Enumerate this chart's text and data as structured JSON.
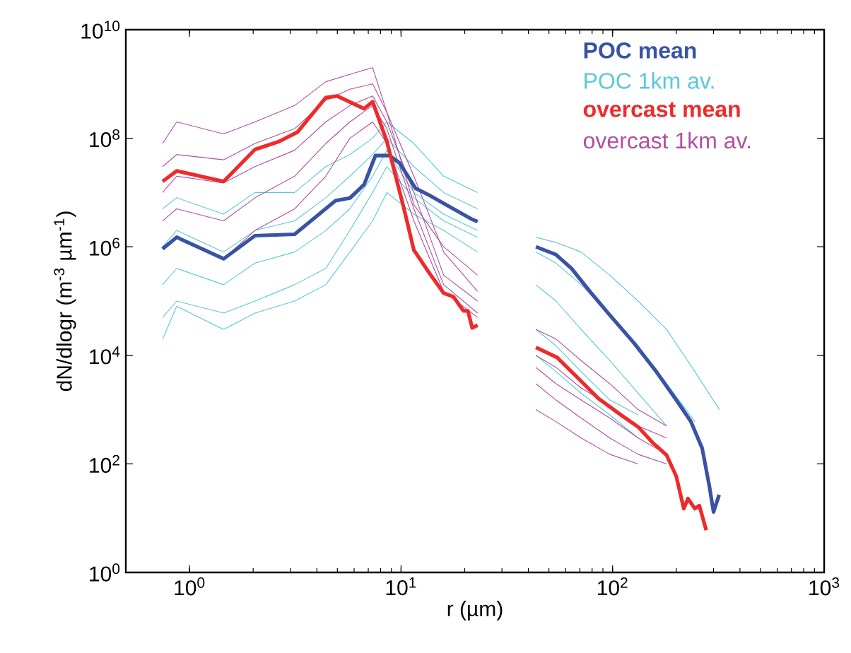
{
  "chart_data": {
    "type": "line",
    "xlabel": "r (µm)",
    "ylabel": "dN/dlogr (m$^{-3}$ µm$^{-1}$)",
    "log": "xy",
    "legend": "top right",
    "line_style": "solid",
    "xlim": [
      0.5,
      1000
    ],
    "ylim": [
      1,
      10000000000
    ],
    "xticks": [
      {
        "value": 1,
        "label": "10$^{0}$"
      },
      {
        "value": 10,
        "label": "10$^{1}$"
      },
      {
        "value": 100,
        "label": "10$^{2}$"
      },
      {
        "value": 1000,
        "label": "10$^{3}$"
      }
    ],
    "yticks": [
      {
        "value": 1,
        "label": "10$^{0}$"
      },
      {
        "value": 100,
        "label": "10$^{2}$"
      },
      {
        "value": 10000,
        "label": "10$^{4}$"
      },
      {
        "value": 1000000,
        "label": "10$^{6}$"
      },
      {
        "value": 100000000,
        "label": "10$^{8}$"
      },
      {
        "value": 10000000000,
        "label": "10$^{10}$"
      }
    ],
    "series": [
      {
        "name": "POC mean",
        "color": "#3953a4",
        "x": [
          0.746,
          0.87,
          1.45,
          2.04,
          3.14,
          4.91,
          5.73,
          6.69,
          7.57,
          8.83,
          9.84,
          11.7,
          13.6,
          16.9,
          21.7,
          23.0
        ],
        "values": [
          910000,
          1500000,
          600000,
          1600000,
          1700000,
          7100000,
          7900000,
          14000000,
          48000000,
          48000000,
          35000000,
          12000000,
          8900000,
          5500000,
          3200000,
          2900000
        ]
      },
      {
        "color": "#3953a4",
        "x": [
          43.4,
          53.9,
          63.9,
          79.3,
          97,
          126,
          161,
          200,
          234,
          265,
          286,
          300,
          319
        ],
        "values": [
          1000000,
          720000,
          400000,
          140000,
          55000,
          17000,
          5000,
          1500,
          610,
          195,
          41,
          13,
          27
        ]
      },
      {
        "name": "POC 1km av.",
        "color": "#5bc8d8",
        "x": [
          0.746,
          0.87,
          1.45,
          2.04,
          3.14,
          4.41,
          5.73,
          7.34,
          8.57,
          11.5,
          15.9,
          23.0
        ],
        "values": [
          5000000,
          8000000,
          4000000,
          10000000,
          10000000,
          30000000,
          50000000,
          100000000,
          200000000,
          80000000,
          20000000,
          10000000
        ]
      },
      {
        "color": "#5bc8d8",
        "x": [
          43.4,
          54,
          71,
          97,
          132,
          180,
          245,
          320
        ],
        "values": [
          1500000,
          1200000,
          800000,
          300000,
          100000,
          30000,
          5000,
          1000
        ]
      },
      {
        "color": "#5bc8d8",
        "x": [
          0.746,
          0.87,
          1.45,
          2.04,
          3.14,
          4.41,
          5.73,
          7.34,
          8.57,
          11.5,
          15.9,
          23.0
        ],
        "values": [
          1000000,
          2000000,
          800000,
          2000000,
          3000000,
          8000000,
          20000000,
          50000000,
          100000000,
          30000000,
          10000000,
          5000000
        ]
      },
      {
        "color": "#5bc8d8",
        "x": [
          43.4,
          54,
          71,
          97,
          132,
          180,
          245
        ],
        "values": [
          800000,
          500000,
          200000,
          60000,
          15000,
          3000,
          600
        ]
      },
      {
        "color": "#5bc8d8",
        "x": [
          0.746,
          0.87,
          1.45,
          2.04,
          3.14,
          4.41,
          5.73,
          7.34,
          8.57,
          11.5,
          15.9,
          23.0
        ],
        "values": [
          200000,
          400000,
          200000,
          500000,
          800000,
          2000000,
          5000000,
          20000000,
          60000000,
          10000000,
          4000000,
          2000000
        ]
      },
      {
        "color": "#5bc8d8",
        "x": [
          43.4,
          54,
          71,
          97,
          132,
          180
        ],
        "values": [
          200000,
          100000,
          30000,
          8000,
          2000,
          500
        ]
      },
      {
        "color": "#5bc8d8",
        "x": [
          0.746,
          0.87,
          1.45,
          2.04,
          3.14,
          4.41,
          5.73,
          7.34,
          8.57,
          11.5,
          15.9,
          23.0
        ],
        "values": [
          50000,
          100000,
          60000,
          100000,
          200000,
          400000,
          2000000,
          10000000,
          30000000,
          8000000,
          3000000,
          1500000
        ]
      },
      {
        "color": "#5bc8d8",
        "x": [
          43.4,
          54,
          71,
          97,
          132
        ],
        "values": [
          30000,
          15000,
          5000,
          1500,
          800
        ]
      },
      {
        "color": "#5bc8d8",
        "x": [
          0.746,
          0.87,
          1.45,
          2.04,
          3.14,
          4.41,
          5.73,
          7.34,
          8.57,
          11.5,
          15.9,
          23.0
        ],
        "values": [
          20000,
          80000,
          30000,
          60000,
          100000,
          200000,
          800000,
          3000000,
          10000000,
          4000000,
          2000000,
          800000
        ]
      },
      {
        "color": "#5bc8d8",
        "x": [
          43.4,
          54,
          71,
          97,
          132
        ],
        "values": [
          10000,
          5000,
          2000,
          800,
          300
        ]
      },
      {
        "name": "overcast mean",
        "color": "#ee2a2a",
        "x": [
          0.746,
          0.87,
          1.45,
          2.04,
          2.65,
          3.24,
          4.41,
          4.99,
          6.69,
          7.34,
          8.57,
          10.3,
          11.5,
          13.6,
          15.9,
          17.7,
          19.7,
          20.7,
          21.7,
          23.0
        ],
        "values": [
          16000000,
          25000000,
          16000000,
          62000000,
          87000000,
          130000000,
          560000000,
          600000000,
          350000000,
          470000000,
          87000000,
          5200000,
          870000,
          330000,
          140000,
          120000,
          66000,
          66000,
          32000,
          36000
        ]
      },
      {
        "color": "#ee2a2a",
        "x": [
          43.4,
          54.7,
          71.2,
          85.7,
          108,
          132,
          154,
          180,
          200,
          217,
          227,
          245,
          257,
          277
        ],
        "values": [
          14000,
          9100,
          3300,
          1600,
          830,
          480,
          250,
          145,
          59,
          15,
          23,
          15,
          17,
          6
        ]
      },
      {
        "name": "overcast 1km av.",
        "color": "#b04fa3",
        "x": [
          0.746,
          0.87,
          1.45,
          2.04,
          3.14,
          4.41,
          5.73,
          7.34,
          8.57,
          11.5,
          15.9,
          23.0
        ],
        "values": [
          80000000,
          200000000,
          120000000,
          200000000,
          400000000,
          1100000000,
          1500000000,
          2000000000,
          300000000,
          6000000,
          1000000,
          300000
        ]
      },
      {
        "color": "#b04fa3",
        "x": [
          43.4,
          54,
          71,
          97,
          132,
          180
        ],
        "values": [
          30000,
          20000,
          8000,
          3000,
          1000,
          500
        ]
      },
      {
        "color": "#b04fa3",
        "x": [
          0.746,
          0.87,
          1.45,
          2.04,
          3.14,
          4.41,
          5.73,
          7.34,
          8.57,
          11.5,
          15.9,
          23.0
        ],
        "values": [
          30000000,
          50000000,
          40000000,
          80000000,
          150000000,
          500000000,
          800000000,
          1000000000,
          300000000,
          20000000,
          800000,
          150000
        ]
      },
      {
        "color": "#b04fa3",
        "x": [
          43.4,
          54,
          71,
          97,
          132,
          180
        ],
        "values": [
          10000,
          6000,
          2500,
          1200,
          500,
          300
        ]
      },
      {
        "color": "#b04fa3",
        "x": [
          0.746,
          0.87,
          1.45,
          2.04,
          3.14,
          4.41,
          5.73,
          7.34,
          8.57,
          11.5,
          15.9,
          23.0
        ],
        "values": [
          10000000,
          20000000,
          15000000,
          30000000,
          60000000,
          200000000,
          400000000,
          600000000,
          200000000,
          10000000,
          300000,
          100000
        ]
      },
      {
        "color": "#b04fa3",
        "x": [
          43.4,
          54,
          71,
          97,
          132,
          180
        ],
        "values": [
          6000,
          3000,
          1500,
          700,
          300,
          150
        ]
      },
      {
        "color": "#b04fa3",
        "x": [
          0.746,
          0.87,
          1.45,
          2.04,
          3.14,
          4.41,
          5.73,
          7.34,
          8.57,
          11.5,
          15.9,
          23.0
        ],
        "values": [
          3000000,
          5000000,
          3000000,
          8000000,
          20000000,
          80000000,
          200000000,
          400000000,
          150000000,
          5000000,
          200000,
          60000
        ]
      },
      {
        "color": "#b04fa3",
        "x": [
          43.4,
          54,
          71,
          97,
          132,
          180
        ],
        "values": [
          3000,
          1500,
          700,
          300,
          150,
          100
        ]
      },
      {
        "color": "#b04fa3",
        "x": [
          0.746,
          0.87,
          1.45,
          2.04,
          3.14,
          4.41,
          5.73,
          7.34,
          8.57,
          11.5,
          15.9,
          23.0
        ],
        "values": [
          1000000,
          1500000,
          600000,
          2000000,
          5000000,
          20000000,
          100000000,
          200000000,
          80000000,
          3000000,
          150000,
          50000
        ]
      },
      {
        "color": "#b04fa3",
        "x": [
          43.4,
          54,
          71,
          97,
          132
        ],
        "values": [
          1000,
          600,
          300,
          150,
          100
        ]
      }
    ]
  }
}
